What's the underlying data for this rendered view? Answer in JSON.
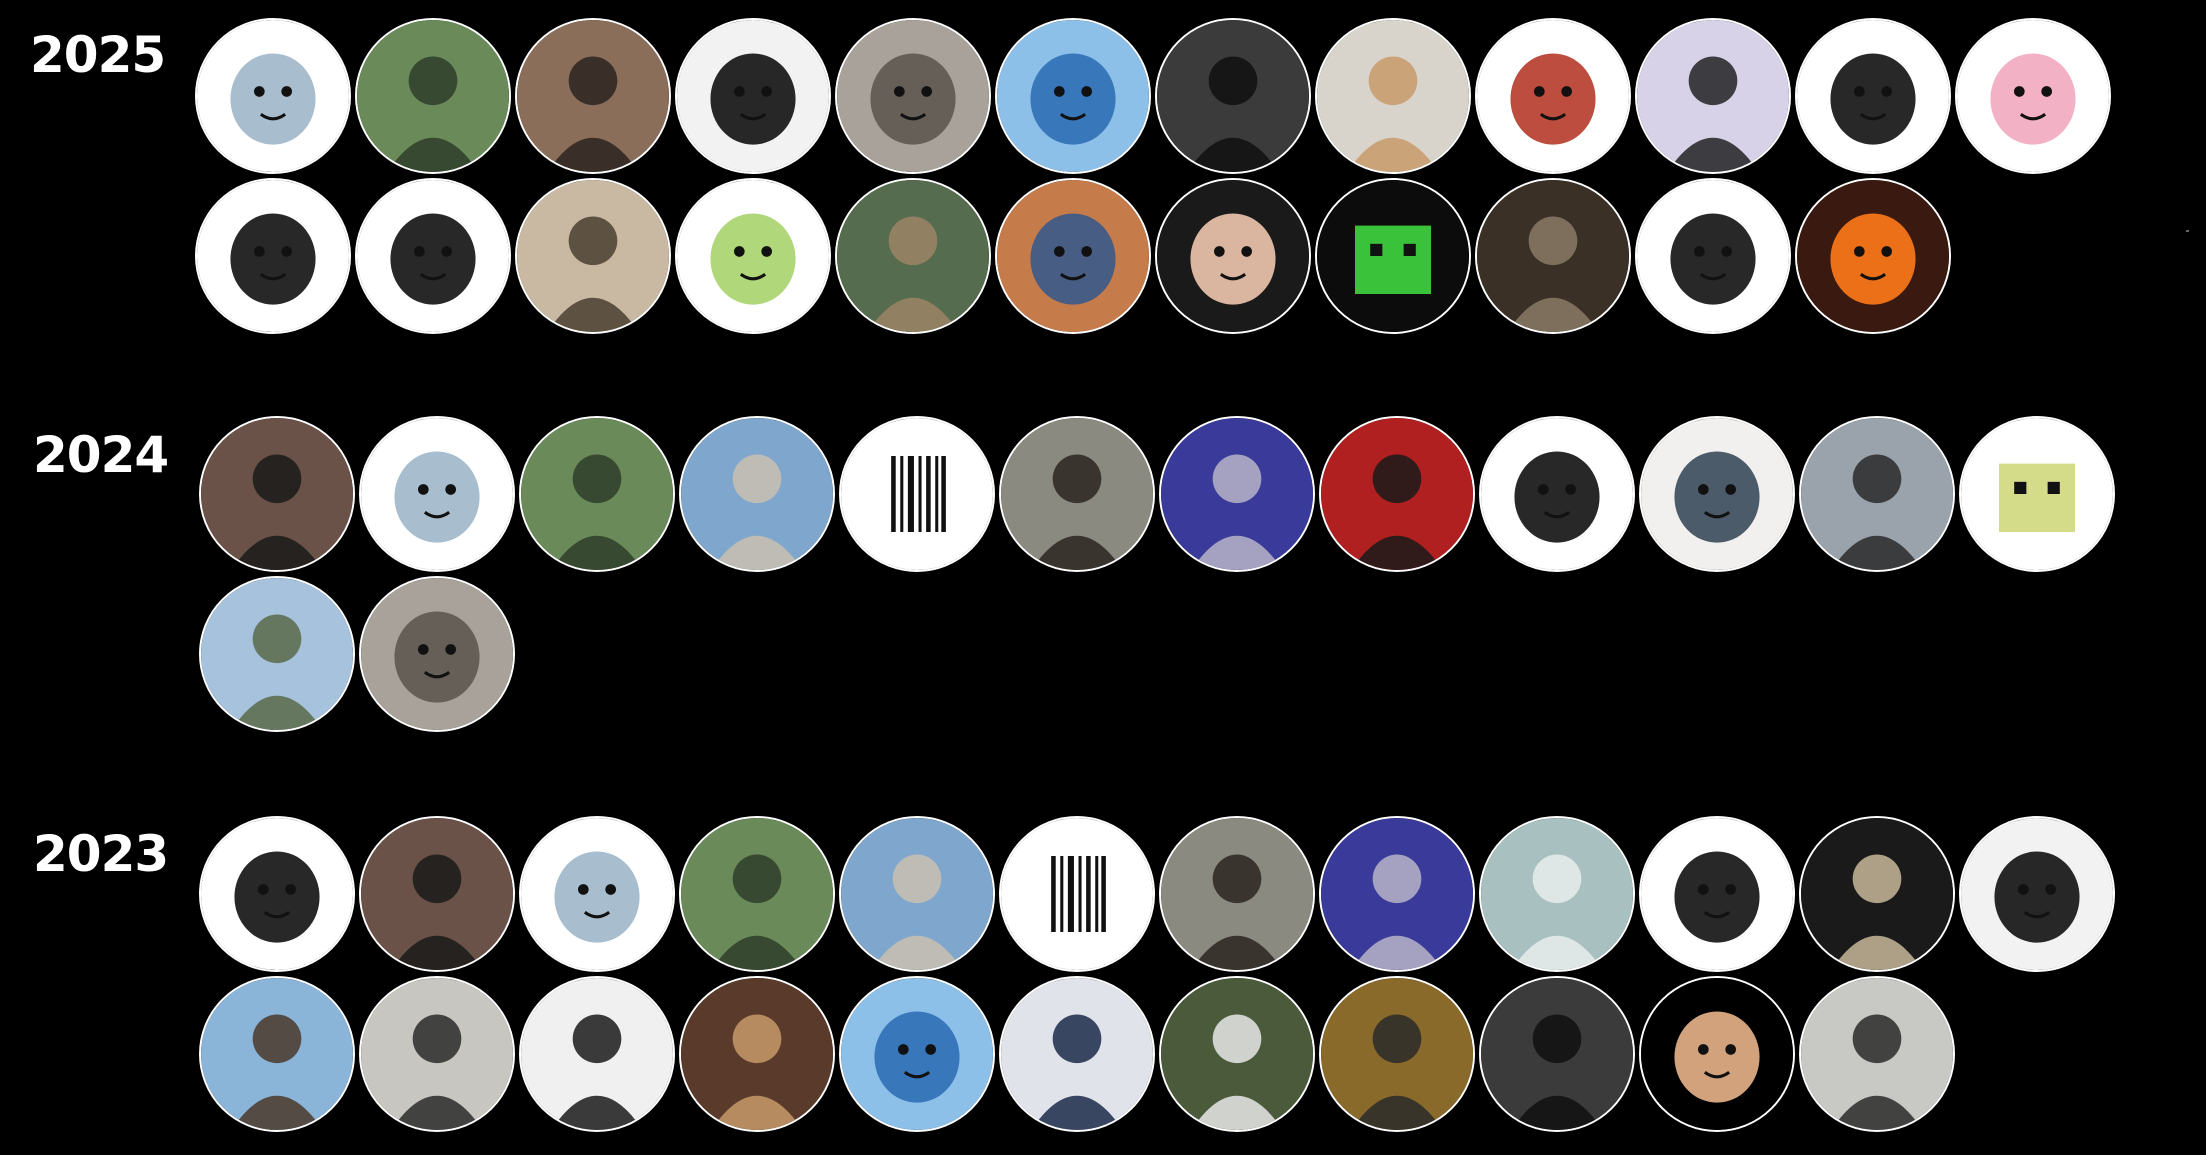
{
  "sections": [
    {
      "year": "2025",
      "avatars": [
        {
          "icon": "shark-cartoon-icon",
          "bg": "#ffffff",
          "fg": "#9fb6c8"
        },
        {
          "icon": "person-photo-icon",
          "bg": "#6a8a5a",
          "fg": "#2e3d2a"
        },
        {
          "icon": "person-photo-icon",
          "bg": "#8b6e5a",
          "fg": "#2b2420"
        },
        {
          "icon": "sprout-boy-cartoon-icon",
          "bg": "#f2f2f2",
          "fg": "#111111"
        },
        {
          "icon": "fox-face-icon",
          "bg": "#a8a29a",
          "fg": "#5d5850"
        },
        {
          "icon": "anime-girl-icon",
          "bg": "#8cc0e8",
          "fg": "#2f6fb5"
        },
        {
          "icon": "person-photo-icon",
          "bg": "#3b3b3b",
          "fg": "#111111"
        },
        {
          "icon": "cat-photo-icon",
          "bg": "#d8d4cc",
          "fg": "#c89a6a"
        },
        {
          "icon": "man-cartoon-icon",
          "bg": "#ffffff",
          "fg": "#b53a2a"
        },
        {
          "icon": "person-photo-icon",
          "bg": "#d7d2e8",
          "fg": "#222222"
        },
        {
          "icon": "duck-cartoon-icon",
          "bg": "#ffffff",
          "fg": "#111111"
        },
        {
          "icon": "pink-creature-icon",
          "bg": "#ffffff",
          "fg": "#f2a8c0"
        },
        {
          "icon": "boy-lineart-icon",
          "bg": "#ffffff",
          "fg": "#111111"
        },
        {
          "icon": "girl-lineart-icon",
          "bg": "#ffffff",
          "fg": "#111111"
        },
        {
          "icon": "person-photo-icon",
          "bg": "#c9b9a3",
          "fg": "#4a3e30"
        },
        {
          "icon": "green-dino-icon",
          "bg": "#ffffff",
          "fg": "#a7d36a"
        },
        {
          "icon": "person-photo-icon",
          "bg": "#566c4e",
          "fg": "#9c8466"
        },
        {
          "icon": "anime-man-icon",
          "bg": "#c67b4a",
          "fg": "#3a5a8a"
        },
        {
          "icon": "memoji-girl-icon",
          "bg": "#1a1a1a",
          "fg": "#f0c8b0"
        },
        {
          "icon": "pixel-slime-icon",
          "bg": "#0c0c0c",
          "fg": "#3ac23a"
        },
        {
          "icon": "person-photo-icon",
          "bg": "#3a3026",
          "fg": "#8a7a66"
        },
        {
          "icon": "ghost-doodle-icon",
          "bg": "#ffffff",
          "fg": "#111111"
        },
        {
          "icon": "flame-princess-icon",
          "bg": "#3a1a10",
          "fg": "#ff7a1a"
        }
      ]
    },
    {
      "year": "2024",
      "avatars": [
        {
          "icon": "person-photo-icon",
          "bg": "#6a5248",
          "fg": "#1a1a1a"
        },
        {
          "icon": "shark-cartoon-icon",
          "bg": "#ffffff",
          "fg": "#9fb6c8"
        },
        {
          "icon": "person-photo-icon",
          "bg": "#6a8a5a",
          "fg": "#2e3d2a"
        },
        {
          "icon": "beach-photo-icon",
          "bg": "#7fa6cc",
          "fg": "#c9bfb0"
        },
        {
          "icon": "barcode-logo-icon",
          "bg": "#ffffff",
          "fg": "#111111"
        },
        {
          "icon": "person-photo-icon",
          "bg": "#8b8a80",
          "fg": "#2b2420"
        },
        {
          "icon": "person-photo-icon",
          "bg": "#3a3a9a",
          "fg": "#b8b4c8"
        },
        {
          "icon": "person-photo-icon",
          "bg": "#b02020",
          "fg": "#1a1a1a"
        },
        {
          "icon": "face-sketch-icon",
          "bg": "#ffffff",
          "fg": "#111111"
        },
        {
          "icon": "chibi-boy-icon",
          "bg": "#f2f0ee",
          "fg": "#3a4a5a"
        },
        {
          "icon": "person-photo-icon",
          "bg": "#9aa3ac",
          "fg": "#2a2a2a"
        },
        {
          "icon": "pixel-block-icon",
          "bg": "#ffffff",
          "fg": "#d4dc8a"
        },
        {
          "icon": "castle-photo-icon",
          "bg": "#a6c2dc",
          "fg": "#5a6a4a"
        },
        {
          "icon": "fox-face-icon",
          "bg": "#a8a29a",
          "fg": "#5d5850"
        }
      ]
    },
    {
      "year": "2023",
      "avatars": [
        {
          "icon": "chick-cartoon-icon",
          "bg": "#ffffff",
          "fg": "#111111"
        },
        {
          "icon": "person-photo-icon",
          "bg": "#6a5248",
          "fg": "#1a1a1a"
        },
        {
          "icon": "shark-cartoon-icon",
          "bg": "#ffffff",
          "fg": "#9fb6c8"
        },
        {
          "icon": "person-photo-icon",
          "bg": "#6a8a5a",
          "fg": "#2e3d2a"
        },
        {
          "icon": "beach-photo-icon",
          "bg": "#7fa6cc",
          "fg": "#c9bfb0"
        },
        {
          "icon": "barcode-logo-icon",
          "bg": "#ffffff",
          "fg": "#111111"
        },
        {
          "icon": "person-photo-icon",
          "bg": "#8b8a80",
          "fg": "#2b2420"
        },
        {
          "icon": "person-photo-icon",
          "bg": "#3a3a9a",
          "fg": "#b8b4c8"
        },
        {
          "icon": "walkway-photo-icon",
          "bg": "#a8c0c0",
          "fg": "#e8ecec"
        },
        {
          "icon": "bird-logo-icon",
          "bg": "#ffffff",
          "fg": "#111111"
        },
        {
          "icon": "code-screen-photo-icon",
          "bg": "#1a1a1a",
          "fg": "#c8b89a"
        },
        {
          "icon": "sprout-boy-cartoon-icon",
          "bg": "#f2f2f2",
          "fg": "#111111"
        },
        {
          "icon": "skydiving-photo-icon",
          "bg": "#8ab4d8",
          "fg": "#4a3a2a"
        },
        {
          "icon": "person-photo-icon",
          "bg": "#c8c6c0",
          "fg": "#2a2a2a"
        },
        {
          "icon": "panda-photo-icon",
          "bg": "#f0f0f0",
          "fg": "#1a1a1a"
        },
        {
          "icon": "restaurant-photo-icon",
          "bg": "#5a3a2a",
          "fg": "#c89a6a"
        },
        {
          "icon": "anime-girl-icon",
          "bg": "#8cc0e8",
          "fg": "#2f6fb5"
        },
        {
          "icon": "person-photo-icon",
          "bg": "#e0e4ea",
          "fg": "#1a2a4a"
        },
        {
          "icon": "person-photo-icon",
          "bg": "#4a5a3a",
          "fg": "#e8e8e8"
        },
        {
          "icon": "autumn-street-photo-icon",
          "bg": "#8a6a2a",
          "fg": "#2a2a2a"
        },
        {
          "icon": "person-photo-icon",
          "bg": "#3b3b3b",
          "fg": "#111111"
        },
        {
          "icon": "memoji-boy-icon",
          "bg": "#000000",
          "fg": "#e8b48a"
        },
        {
          "icon": "person-photo-icon",
          "bg": "#c8c8c4",
          "fg": "#2a2a2a"
        }
      ]
    }
  ]
}
